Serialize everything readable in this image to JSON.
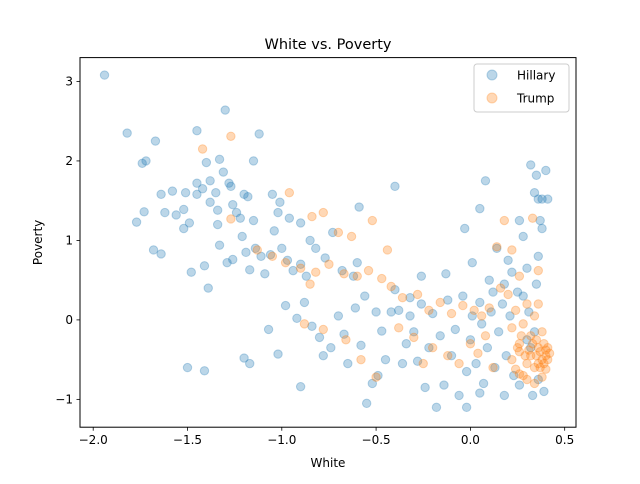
{
  "chart_data": {
    "type": "scatter",
    "title": "White vs. Poverty",
    "xlabel": "White",
    "ylabel": "Poverty",
    "xlim": [
      -2.07,
      0.56
    ],
    "ylim": [
      -1.35,
      3.3
    ],
    "xticks": [
      -2.0,
      -1.5,
      -1.0,
      -0.5,
      0.0,
      0.5
    ],
    "xtick_labels": [
      "−2.0",
      "−1.5",
      "−1.0",
      "−0.5",
      "0.0",
      "0.5"
    ],
    "yticks": [
      -1,
      0,
      1,
      2,
      3
    ],
    "ytick_labels": [
      "−1",
      "0",
      "1",
      "2",
      "3"
    ],
    "grid": false,
    "legend_position": "top-right",
    "series": [
      {
        "name": "Hillary",
        "color": "#1f77b4",
        "points": [
          [
            -1.94,
            3.08
          ],
          [
            -1.82,
            2.35
          ],
          [
            -1.67,
            2.25
          ],
          [
            -1.45,
            2.38
          ],
          [
            -1.3,
            2.64
          ],
          [
            -1.12,
            2.34
          ],
          [
            -1.74,
            1.97
          ],
          [
            -1.72,
            2.0
          ],
          [
            -1.51,
            1.6
          ],
          [
            -1.45,
            1.72
          ],
          [
            -1.42,
            1.65
          ],
          [
            -1.4,
            1.98
          ],
          [
            -1.38,
            1.75
          ],
          [
            -1.35,
            1.6
          ],
          [
            -1.33,
            2.02
          ],
          [
            -1.31,
            1.86
          ],
          [
            -1.28,
            1.72
          ],
          [
            -1.27,
            1.68
          ],
          [
            -1.2,
            1.58
          ],
          [
            -1.18,
            1.55
          ],
          [
            -1.15,
            2.0
          ],
          [
            -1.64,
            1.58
          ],
          [
            -1.58,
            1.62
          ],
          [
            -1.77,
            1.23
          ],
          [
            -1.73,
            1.36
          ],
          [
            -1.62,
            1.35
          ],
          [
            -1.56,
            1.32
          ],
          [
            -1.52,
            1.39
          ],
          [
            -1.49,
            1.22
          ],
          [
            -1.45,
            1.58
          ],
          [
            -1.38,
            1.48
          ],
          [
            -1.34,
            1.38
          ],
          [
            -1.34,
            1.2
          ],
          [
            -1.26,
            1.45
          ],
          [
            -1.24,
            1.35
          ],
          [
            -1.22,
            1.28
          ],
          [
            -1.15,
            1.25
          ],
          [
            -1.05,
            1.58
          ],
          [
            -1.01,
            1.48
          ],
          [
            -1.02,
            1.35
          ],
          [
            -0.96,
            1.28
          ],
          [
            -0.9,
            1.22
          ],
          [
            -1.68,
            0.88
          ],
          [
            -1.64,
            0.83
          ],
          [
            -1.52,
            1.15
          ],
          [
            -1.48,
            0.6
          ],
          [
            -1.41,
            0.68
          ],
          [
            -1.39,
            0.4
          ],
          [
            -1.33,
            0.94
          ],
          [
            -1.29,
            0.72
          ],
          [
            -1.26,
            0.76
          ],
          [
            -1.21,
            1.05
          ],
          [
            -1.19,
            0.85
          ],
          [
            -1.17,
            0.63
          ],
          [
            -1.14,
            0.9
          ],
          [
            -1.11,
            0.8
          ],
          [
            -1.09,
            0.58
          ],
          [
            -1.06,
            0.82
          ],
          [
            -1.04,
            1.12
          ],
          [
            -1.0,
            0.9
          ],
          [
            -0.97,
            0.75
          ],
          [
            -0.94,
            0.62
          ],
          [
            -0.9,
            0.7
          ],
          [
            -0.87,
            0.55
          ],
          [
            -0.85,
            1.0
          ],
          [
            -0.82,
            0.9
          ],
          [
            -0.77,
            0.78
          ],
          [
            -0.73,
            1.1
          ],
          [
            -0.68,
            0.62
          ],
          [
            -0.62,
            0.55
          ],
          [
            -0.59,
            1.42
          ],
          [
            -0.56,
            0.3
          ],
          [
            -0.5,
            0.1
          ],
          [
            -1.5,
            -0.6
          ],
          [
            -1.41,
            -0.64
          ],
          [
            -1.2,
            -0.48
          ],
          [
            -1.17,
            -0.55
          ],
          [
            -1.07,
            -0.12
          ],
          [
            -1.02,
            -0.43
          ],
          [
            -0.98,
            0.18
          ],
          [
            -0.92,
            0.02
          ],
          [
            -0.88,
            0.22
          ],
          [
            -0.84,
            -0.08
          ],
          [
            -0.8,
            -0.22
          ],
          [
            -0.78,
            -0.45
          ],
          [
            -0.74,
            -0.35
          ],
          [
            -0.7,
            0.05
          ],
          [
            -0.67,
            -0.18
          ],
          [
            -0.65,
            -0.55
          ],
          [
            -0.61,
            0.15
          ],
          [
            -0.58,
            -0.32
          ],
          [
            -0.55,
            -1.05
          ],
          [
            -0.52,
            -0.8
          ],
          [
            -0.49,
            -0.7
          ],
          [
            -0.47,
            -0.14
          ],
          [
            -0.45,
            -0.5
          ],
          [
            -0.42,
            0.1
          ],
          [
            -0.4,
            0.38
          ],
          [
            -0.38,
            0.12
          ],
          [
            -0.36,
            -0.55
          ],
          [
            -0.34,
            -0.3
          ],
          [
            -0.32,
            0.05
          ],
          [
            -0.3,
            -0.15
          ],
          [
            -0.28,
            -0.52
          ],
          [
            -0.26,
            0.2
          ],
          [
            -0.24,
            -0.85
          ],
          [
            -0.22,
            -0.35
          ],
          [
            -0.2,
            0.08
          ],
          [
            -0.18,
            -1.1
          ],
          [
            -0.16,
            -0.2
          ],
          [
            -0.14,
            -0.82
          ],
          [
            -0.12,
            0.25
          ],
          [
            -0.1,
            -0.45
          ],
          [
            -0.08,
            -0.12
          ],
          [
            -0.06,
            -0.95
          ],
          [
            -0.04,
            0.3
          ],
          [
            -0.02,
            -0.65
          ],
          [
            0.0,
            -0.25
          ],
          [
            0.01,
            0.05
          ],
          [
            0.03,
            -0.55
          ],
          [
            0.05,
            0.22
          ],
          [
            0.07,
            -0.8
          ],
          [
            0.09,
            -0.35
          ],
          [
            0.11,
            0.1
          ],
          [
            0.13,
            -0.6
          ],
          [
            0.15,
            -0.15
          ],
          [
            0.17,
            0.2
          ],
          [
            0.19,
            -0.45
          ],
          [
            0.21,
            0.05
          ],
          [
            0.23,
            -0.7
          ],
          [
            0.25,
            0.35
          ],
          [
            -0.4,
            1.68
          ],
          [
            -0.26,
            0.55
          ],
          [
            -0.13,
            0.58
          ],
          [
            -0.03,
            1.15
          ],
          [
            0.01,
            0.72
          ],
          [
            0.05,
            1.4
          ],
          [
            0.08,
            1.75
          ],
          [
            0.14,
            0.9
          ],
          [
            0.2,
            0.75
          ],
          [
            0.26,
            1.25
          ],
          [
            0.28,
            1.05
          ],
          [
            0.3,
            0.65
          ],
          [
            0.32,
            1.95
          ],
          [
            0.34,
            1.6
          ],
          [
            0.35,
            1.82
          ],
          [
            0.36,
            1.52
          ],
          [
            0.38,
            1.52
          ],
          [
            0.4,
            1.88
          ],
          [
            0.41,
            1.52
          ],
          [
            0.37,
            1.25
          ],
          [
            0.38,
            1.15
          ],
          [
            0.36,
            0.8
          ],
          [
            0.35,
            0.45
          ],
          [
            -0.02,
            -1.1
          ],
          [
            0.05,
            -0.92
          ],
          [
            0.18,
            -0.95
          ],
          [
            0.26,
            -0.82
          ],
          [
            0.33,
            -0.95
          ],
          [
            0.36,
            -0.75
          ],
          [
            0.39,
            -0.9
          ],
          [
            0.3,
            -0.25
          ],
          [
            0.32,
            -0.35
          ],
          [
            0.34,
            -0.15
          ],
          [
            0.31,
            0.1
          ],
          [
            0.28,
            0.3
          ],
          [
            0.22,
            0.6
          ],
          [
            0.18,
            0.45
          ],
          [
            0.12,
            0.35
          ],
          [
            0.1,
            0.5
          ],
          [
            0.06,
            -0.05
          ],
          [
            -0.9,
            -0.84
          ],
          [
            -0.32,
            0.28
          ],
          [
            -0.6,
            0.72
          ]
        ]
      },
      {
        "name": "Trump",
        "color": "#ff7f0e",
        "points": [
          [
            -1.27,
            2.31
          ],
          [
            -1.42,
            2.15
          ],
          [
            -1.27,
            1.27
          ],
          [
            -0.96,
            1.6
          ],
          [
            -0.84,
            1.3
          ],
          [
            -0.78,
            1.35
          ],
          [
            -0.7,
            1.1
          ],
          [
            -0.63,
            1.05
          ],
          [
            -0.52,
            1.25
          ],
          [
            -0.44,
            0.88
          ],
          [
            -1.13,
            0.88
          ],
          [
            -1.05,
            0.8
          ],
          [
            -0.98,
            0.72
          ],
          [
            -0.9,
            0.65
          ],
          [
            -0.82,
            0.6
          ],
          [
            -0.75,
            0.7
          ],
          [
            -0.67,
            0.58
          ],
          [
            -0.6,
            0.55
          ],
          [
            -0.54,
            0.62
          ],
          [
            -0.47,
            0.52
          ],
          [
            -0.42,
            0.42
          ],
          [
            -0.36,
            0.28
          ],
          [
            -0.28,
            0.32
          ],
          [
            -0.22,
            0.12
          ],
          [
            -0.16,
            0.22
          ],
          [
            -0.1,
            0.08
          ],
          [
            -0.04,
            0.18
          ],
          [
            0.02,
            0.12
          ],
          [
            0.06,
            0.05
          ],
          [
            0.1,
            0.15
          ],
          [
            -0.88,
            -0.05
          ],
          [
            -0.78,
            -0.12
          ],
          [
            -0.66,
            -0.25
          ],
          [
            -0.58,
            -0.5
          ],
          [
            -0.5,
            -0.72
          ],
          [
            -0.38,
            -0.1
          ],
          [
            -0.3,
            -0.22
          ],
          [
            -0.2,
            -0.35
          ],
          [
            -0.12,
            -0.45
          ],
          [
            -0.06,
            -0.55
          ],
          [
            0.0,
            -0.3
          ],
          [
            0.04,
            -0.42
          ],
          [
            0.08,
            -0.2
          ],
          [
            0.12,
            -0.6
          ],
          [
            0.16,
            0.4
          ],
          [
            0.14,
            0.92
          ],
          [
            0.2,
            0.32
          ],
          [
            0.22,
            -0.1
          ],
          [
            0.24,
            0.12
          ],
          [
            0.26,
            -0.3
          ],
          [
            0.28,
            -0.05
          ],
          [
            0.3,
            0.2
          ],
          [
            0.32,
            -0.2
          ],
          [
            0.34,
            0.05
          ],
          [
            0.36,
            -0.35
          ],
          [
            0.38,
            -0.15
          ],
          [
            0.4,
            -0.45
          ],
          [
            0.22,
            -0.5
          ],
          [
            0.24,
            -0.62
          ],
          [
            0.26,
            -0.4
          ],
          [
            0.28,
            -0.7
          ],
          [
            0.3,
            -0.55
          ],
          [
            0.32,
            -0.45
          ],
          [
            0.34,
            -0.6
          ],
          [
            0.36,
            -0.55
          ],
          [
            0.38,
            -0.5
          ],
          [
            0.4,
            -0.62
          ],
          [
            0.41,
            -0.35
          ],
          [
            0.42,
            -0.42
          ],
          [
            0.33,
            -0.3
          ],
          [
            0.35,
            -0.25
          ],
          [
            0.37,
            -0.4
          ],
          [
            0.39,
            -0.3
          ],
          [
            0.41,
            -0.5
          ],
          [
            0.31,
            -0.38
          ],
          [
            0.29,
            -0.45
          ],
          [
            0.27,
            -0.2
          ],
          [
            0.25,
            -0.35
          ],
          [
            0.35,
            -0.45
          ],
          [
            0.37,
            -0.6
          ],
          [
            0.39,
            -0.55
          ],
          [
            0.4,
            -0.38
          ],
          [
            0.38,
            -0.72
          ],
          [
            0.34,
            -0.8
          ],
          [
            0.3,
            -0.75
          ],
          [
            0.26,
            -0.68
          ],
          [
            0.36,
            0.2
          ],
          [
            0.33,
            1.28
          ],
          [
            0.36,
            0.62
          ],
          [
            0.22,
            0.88
          ],
          [
            0.26,
            0.55
          ],
          [
            0.18,
            1.25
          ],
          [
            -0.85,
            0.45
          ],
          [
            -0.25,
            -0.55
          ]
        ]
      }
    ]
  }
}
